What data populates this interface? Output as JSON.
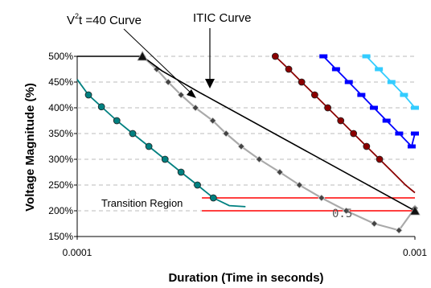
{
  "chart_data": {
    "type": "line",
    "title": "",
    "xlabel": "Duration (Time in seconds)",
    "ylabel": "Voltage Magnitude (%)",
    "x_scale": "log",
    "xlim": [
      0.0001,
      0.001
    ],
    "ylim": [
      150,
      500
    ],
    "x_ticks": [
      0.0001,
      0.001
    ],
    "x_tick_labels": [
      "0.0001",
      "0.001"
    ],
    "y_ticks": [
      150,
      200,
      250,
      300,
      350,
      400,
      450,
      500
    ],
    "y_tick_labels": [
      "150%",
      "200%",
      "250%",
      "300%",
      "350%",
      "400%",
      "450%",
      "500%"
    ],
    "grid": "horizontal-dashed",
    "series": [
      {
        "color": "#008080",
        "marker": "circle",
        "x": [
          0.0001,
          0.000108,
          0.000118,
          0.000131,
          0.000146,
          0.000163,
          0.000182,
          0.000203,
          0.000227,
          0.000253,
          0.000282,
          0.000315
        ],
        "y": [
          455,
          425,
          402,
          375,
          350,
          325,
          300,
          275,
          250,
          225,
          210,
          208
        ],
        "markers": [
          1,
          2,
          3,
          4,
          5,
          6,
          7,
          8,
          9
        ]
      },
      {
        "color": "#aaaaaa",
        "marker": "diamond",
        "x": [
          0.000156,
          0.000172,
          0.000186,
          0.000203,
          0.000224,
          0.000252,
          0.000276,
          0.000306,
          0.000346,
          0.000398,
          0.000455,
          0.000529,
          0.000626,
          0.000758,
          0.000897,
          0.001
        ],
        "y": [
          500,
          475,
          450,
          425,
          400,
          375,
          350,
          325,
          300,
          275,
          250,
          225,
          200,
          175,
          162,
          205
        ],
        "markers": [
          0,
          1,
          2,
          3,
          4,
          5,
          6,
          7,
          8,
          9,
          10,
          11,
          12,
          13,
          14,
          15
        ]
      },
      {
        "color": "#000000",
        "marker": "triangle",
        "x": [
          0.0001,
          0.000156,
          0.000178,
          0.00023,
          0.001
        ],
        "y": [
          500,
          500,
          472,
          430,
          200
        ],
        "markers": [
          1,
          4
        ]
      },
      {
        "color": "#8b0000",
        "marker": "circle",
        "x": [
          0.000386,
          0.000423,
          0.000462,
          0.000505,
          0.000552,
          0.000603,
          0.000658,
          0.000719,
          0.000786,
          0.000859,
          0.000938,
          0.001
        ],
        "y": [
          500,
          475,
          450,
          425,
          400,
          375,
          350,
          325,
          300,
          275,
          250,
          235
        ],
        "markers": [
          0,
          1,
          2,
          3,
          4,
          5,
          6,
          7,
          8
        ]
      },
      {
        "color": "#0000ff",
        "marker": "dash",
        "x": [
          0.000536,
          0.000584,
          0.000637,
          0.000694,
          0.000756,
          0.000824,
          0.000898,
          0.000978,
          0.001
        ],
        "y": [
          500,
          475,
          450,
          425,
          400,
          375,
          350,
          325,
          350
        ],
        "markers": [
          0,
          1,
          2,
          3,
          4,
          5,
          6,
          7,
          8
        ]
      },
      {
        "color": "#33ccff",
        "marker": "dash",
        "x": [
          0.000718,
          0.000782,
          0.000852,
          0.000928,
          0.001
        ],
        "y": [
          500,
          475,
          450,
          425,
          400
        ],
        "markers": [
          0,
          1,
          2,
          3,
          4
        ]
      }
    ],
    "transition_region": {
      "color": "#ff0000",
      "y": [
        225,
        200
      ],
      "x_start": 0.000234,
      "x_end": 0.001
    },
    "annotations": [
      {
        "text": "V²t =40 Curve",
        "parts": [
          "V",
          "2",
          "t =40 Curve"
        ]
      },
      {
        "text": "ITIC Curve"
      },
      {
        "text": "Transition Region"
      },
      {
        "text": "0.5"
      }
    ],
    "legend": "none"
  }
}
